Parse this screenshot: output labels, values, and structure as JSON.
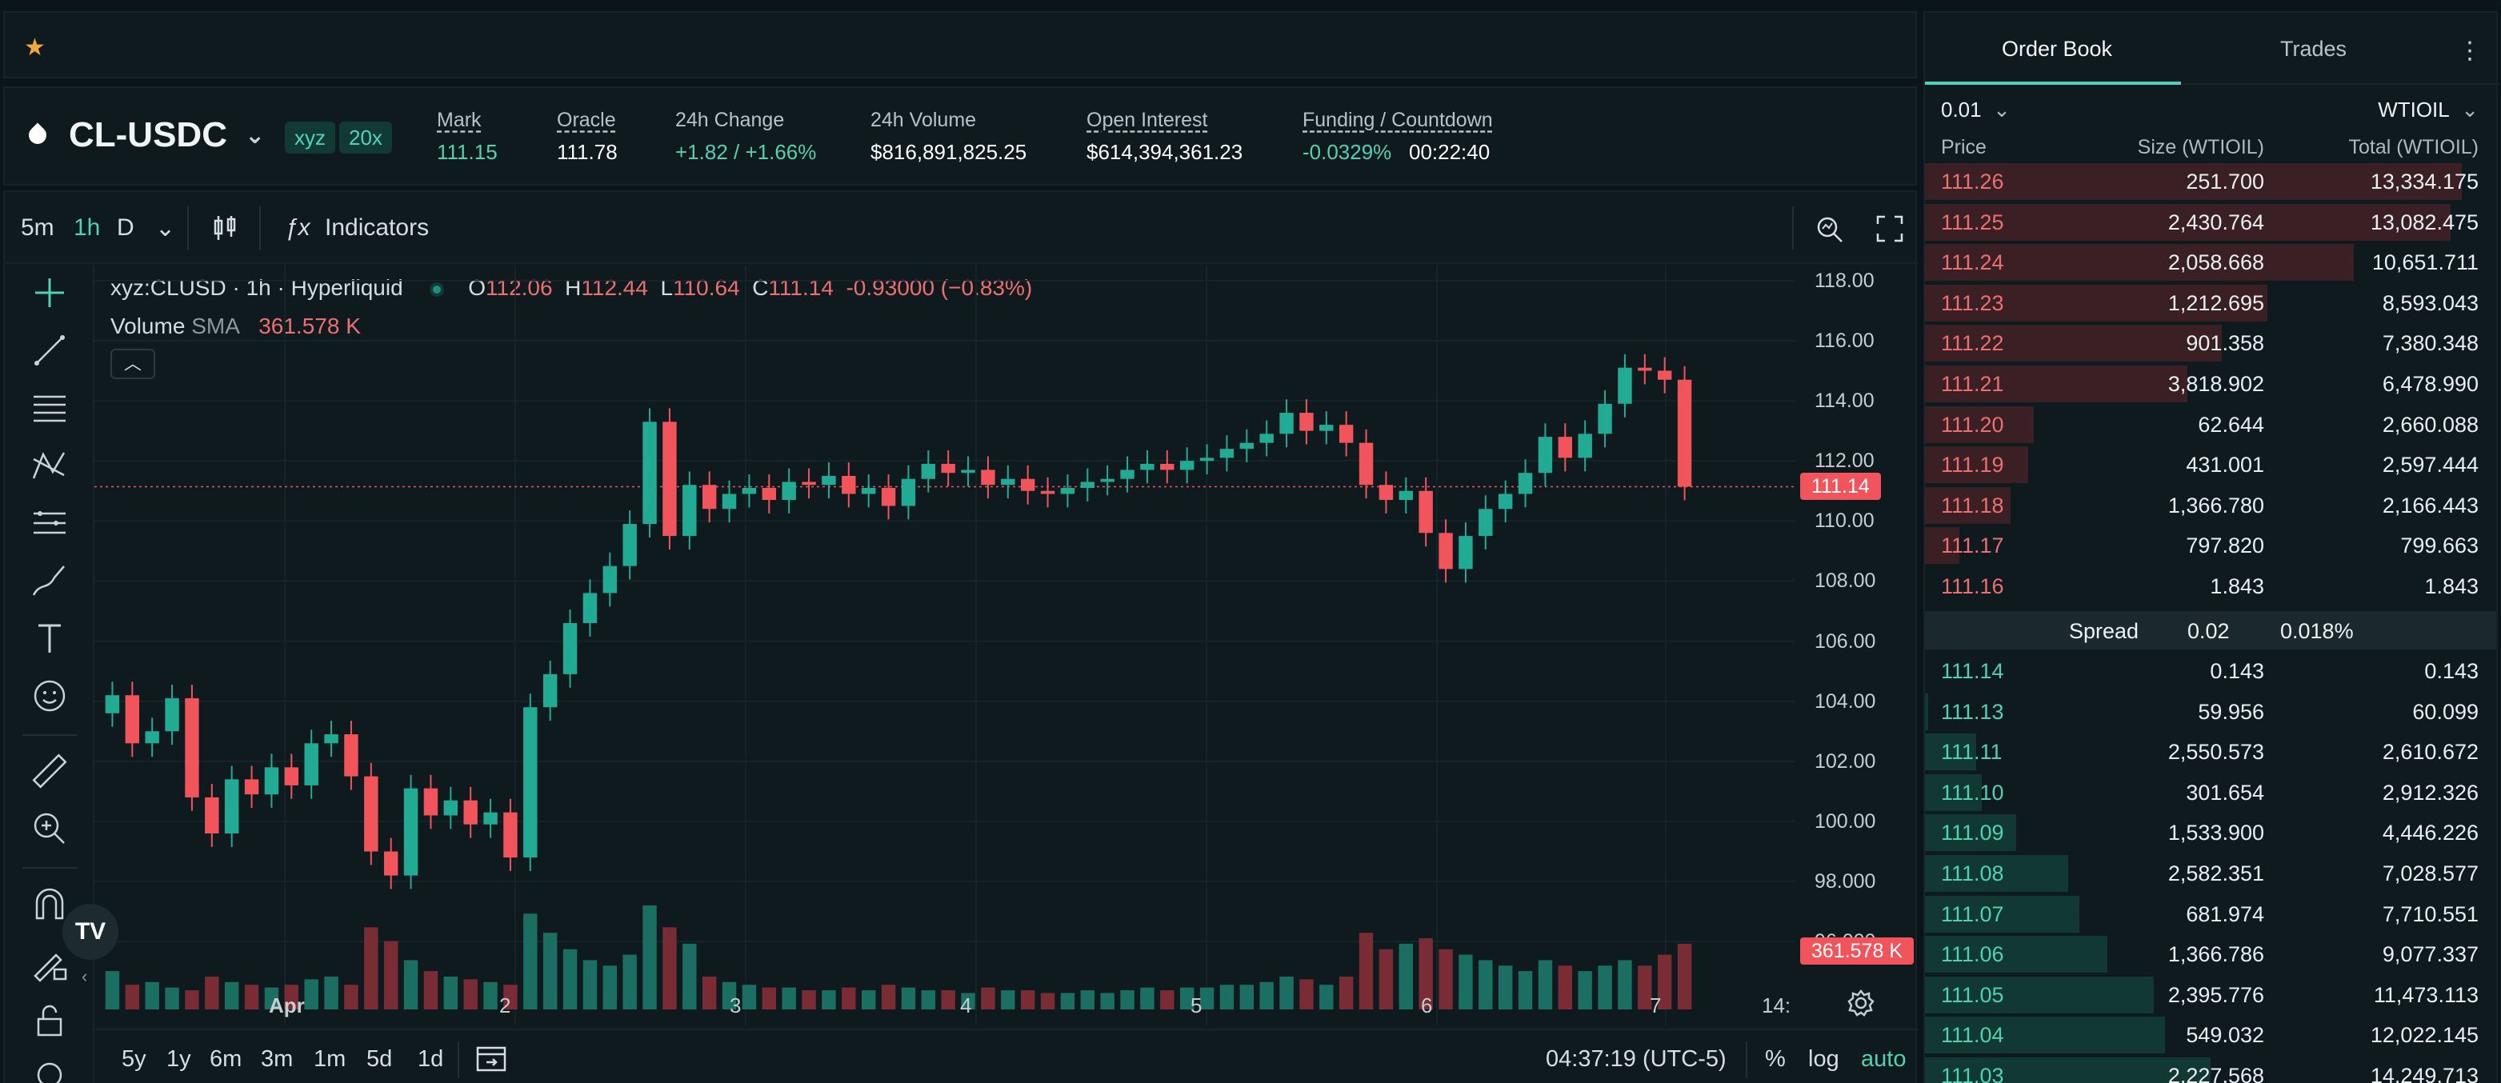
{
  "header": {
    "symbol": "CL-USDC",
    "tags": [
      "xyz",
      "20x"
    ],
    "stats": [
      {
        "label": "Mark",
        "value": "111.15"
      },
      {
        "label": "Oracle",
        "value": "111.78"
      },
      {
        "label": "24h Change",
        "value": "+1.82 / +1.66%"
      },
      {
        "label": "24h Volume",
        "value": "$816,891,825.25"
      },
      {
        "label": "Open Interest",
        "value": "$614,394,361.23"
      },
      {
        "label": "Funding / Countdown",
        "value": "-0.0329%",
        "value2": "00:22:40"
      }
    ]
  },
  "chart_toolbar": {
    "intervals": [
      "5m",
      "1h",
      "D"
    ],
    "active_interval": "1h",
    "indicators_label": "Indicators"
  },
  "chart_legend": {
    "symbol_line": "xyz:CLUSD · 1h · Hyperliquid",
    "o_label": "O",
    "o": "112.06",
    "h_label": "H",
    "h": "112.44",
    "l_label": "L",
    "l": "110.64",
    "c_label": "C",
    "c": "111.14",
    "change": "-0.93000 (−0.83%)",
    "volume_label": "Volume",
    "sma_label": "SMA",
    "volume_value": "361.578 K"
  },
  "chart_data": {
    "type": "candlestick",
    "price_ticks": [
      "118.00",
      "116.00",
      "114.00",
      "112.00",
      "110.00",
      "108.00",
      "106.00",
      "104.00",
      "102.00",
      "100.00",
      "98.000",
      "96.000"
    ],
    "ylim": [
      95.5,
      118.5
    ],
    "time_ticks": [
      "Apr",
      "2",
      "3",
      "4",
      "5",
      "6",
      "7",
      "14:"
    ],
    "last_price": "111.14",
    "last_volume": "361.578 K",
    "series": [
      {
        "name": "close",
        "values": [
          104.2,
          102.6,
          103.0,
          104.1,
          100.8,
          99.6,
          101.4,
          100.9,
          101.8,
          101.2,
          102.6,
          102.9,
          101.5,
          99.0,
          98.2,
          101.1,
          100.2,
          100.7,
          99.9,
          100.3,
          98.8,
          103.8,
          104.9,
          106.6,
          107.6,
          108.5,
          109.9,
          113.3,
          109.5,
          111.2,
          110.4,
          110.9,
          111.1,
          110.7,
          111.3,
          111.2,
          111.5,
          110.9,
          111.1,
          110.5,
          111.4,
          111.9,
          111.6,
          111.7,
          111.2,
          111.4,
          111.0,
          110.9,
          111.1,
          111.3,
          111.4,
          111.7,
          111.9,
          111.7,
          112.0,
          112.1,
          112.4,
          112.6,
          112.9,
          113.6,
          113.0,
          113.2,
          112.6,
          111.2,
          110.7,
          111.0,
          109.6,
          108.4,
          109.5,
          110.4,
          110.9,
          111.6,
          112.8,
          112.1,
          112.9,
          113.9,
          115.1,
          115.0,
          114.7,
          111.14
        ]
      },
      {
        "name": "volume",
        "values": [
          14,
          9,
          10,
          8,
          7,
          12,
          10,
          9,
          8,
          9,
          11,
          12,
          9,
          30,
          25,
          18,
          14,
          12,
          11,
          10,
          9,
          35,
          28,
          22,
          18,
          16,
          20,
          38,
          30,
          24,
          12,
          10,
          9,
          8,
          8,
          7,
          7,
          8,
          7,
          9,
          8,
          7,
          7,
          6,
          8,
          7,
          7,
          6,
          6,
          7,
          6,
          7,
          8,
          7,
          8,
          8,
          9,
          9,
          10,
          12,
          11,
          9,
          12,
          28,
          22,
          24,
          26,
          22,
          20,
          18,
          16,
          14,
          18,
          16,
          14,
          16,
          18,
          16,
          20,
          24
        ]
      }
    ]
  },
  "chart_bottom": {
    "ranges": [
      "5y",
      "1y",
      "6m",
      "3m",
      "1m",
      "5d",
      "1d"
    ],
    "clock": "04:37:19 (UTC-5)",
    "percent_label": "%",
    "log_label": "log",
    "auto_label": "auto"
  },
  "orderbook": {
    "tabs": [
      "Order Book",
      "Trades"
    ],
    "tick_size": "0.01",
    "asset": "WTIOIL",
    "headers": {
      "price": "Price",
      "size": "Size (WTIOIL)",
      "total": "Total (WTIOIL)"
    },
    "asks": [
      {
        "price": "111.26",
        "size": "251.700",
        "total": "13,334.175",
        "depth": 0.94
      },
      {
        "price": "111.25",
        "size": "2,430.764",
        "total": "13,082.475",
        "depth": 0.92
      },
      {
        "price": "111.24",
        "size": "2,058.668",
        "total": "10,651.711",
        "depth": 0.75
      },
      {
        "price": "111.23",
        "size": "1,212.695",
        "total": "8,593.043",
        "depth": 0.6
      },
      {
        "price": "111.22",
        "size": "901.358",
        "total": "7,380.348",
        "depth": 0.52
      },
      {
        "price": "111.21",
        "size": "3,818.902",
        "total": "6,478.990",
        "depth": 0.46
      },
      {
        "price": "111.20",
        "size": "62.644",
        "total": "2,660.088",
        "depth": 0.19
      },
      {
        "price": "111.19",
        "size": "431.001",
        "total": "2,597.444",
        "depth": 0.18
      },
      {
        "price": "111.18",
        "size": "1,366.780",
        "total": "2,166.443",
        "depth": 0.15
      },
      {
        "price": "111.17",
        "size": "797.820",
        "total": "799.663",
        "depth": 0.06
      },
      {
        "price": "111.16",
        "size": "1.843",
        "total": "1.843",
        "depth": 0.0
      }
    ],
    "spread": {
      "label": "Spread",
      "value": "0.02",
      "pct": "0.018%"
    },
    "bids": [
      {
        "price": "111.14",
        "size": "0.143",
        "total": "0.143",
        "depth": 0.0
      },
      {
        "price": "111.13",
        "size": "59.956",
        "total": "60.099",
        "depth": 0.005
      },
      {
        "price": "111.11",
        "size": "2,550.573",
        "total": "2,610.672",
        "depth": 0.09
      },
      {
        "price": "111.10",
        "size": "301.654",
        "total": "2,912.326",
        "depth": 0.1
      },
      {
        "price": "111.09",
        "size": "1,533.900",
        "total": "4,446.226",
        "depth": 0.16
      },
      {
        "price": "111.08",
        "size": "2,582.351",
        "total": "7,028.577",
        "depth": 0.25
      },
      {
        "price": "111.07",
        "size": "681.974",
        "total": "7,710.551",
        "depth": 0.27
      },
      {
        "price": "111.06",
        "size": "1,366.786",
        "total": "9,077.337",
        "depth": 0.32
      },
      {
        "price": "111.05",
        "size": "2,395.776",
        "total": "11,473.113",
        "depth": 0.4
      },
      {
        "price": "111.04",
        "size": "549.032",
        "total": "12,022.145",
        "depth": 0.42
      },
      {
        "price": "111.03",
        "size": "2,227.568",
        "total": "14,249.713",
        "depth": 0.5
      }
    ]
  }
}
